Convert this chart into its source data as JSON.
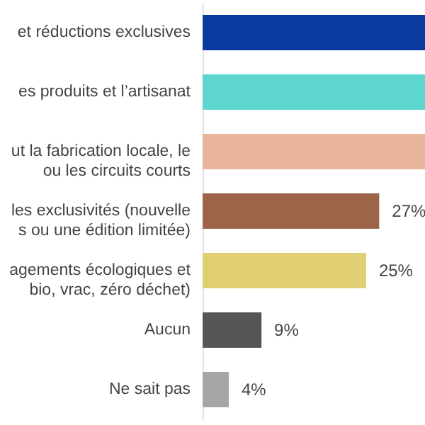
{
  "chart_data": {
    "type": "bar",
    "orientation": "horizontal",
    "categories": [
      "et réductions exclusives",
      "es produits et l’artisanat",
      "ut la fabrication locale, le\nou les circuits courts",
      "les exclusivités (nouvelle\ns ou une édition limitée)",
      "agements écologiques et\nbio, vrac, zéro déchet)",
      "Aucun",
      "Ne sait pas"
    ],
    "values": [
      34,
      34,
      34,
      27,
      25,
      9,
      4
    ],
    "colors": [
      "#0b3ba0",
      "#5dd6cf",
      "#e8b49a",
      "#9c6548",
      "#e0cf72",
      "#555555",
      "#a6a6a6"
    ],
    "value_labels": [
      null,
      null,
      null,
      "27%",
      "25%",
      "9%",
      "4%"
    ],
    "xlim": [
      0,
      34
    ],
    "tick_labels": "y",
    "grid": false
  }
}
